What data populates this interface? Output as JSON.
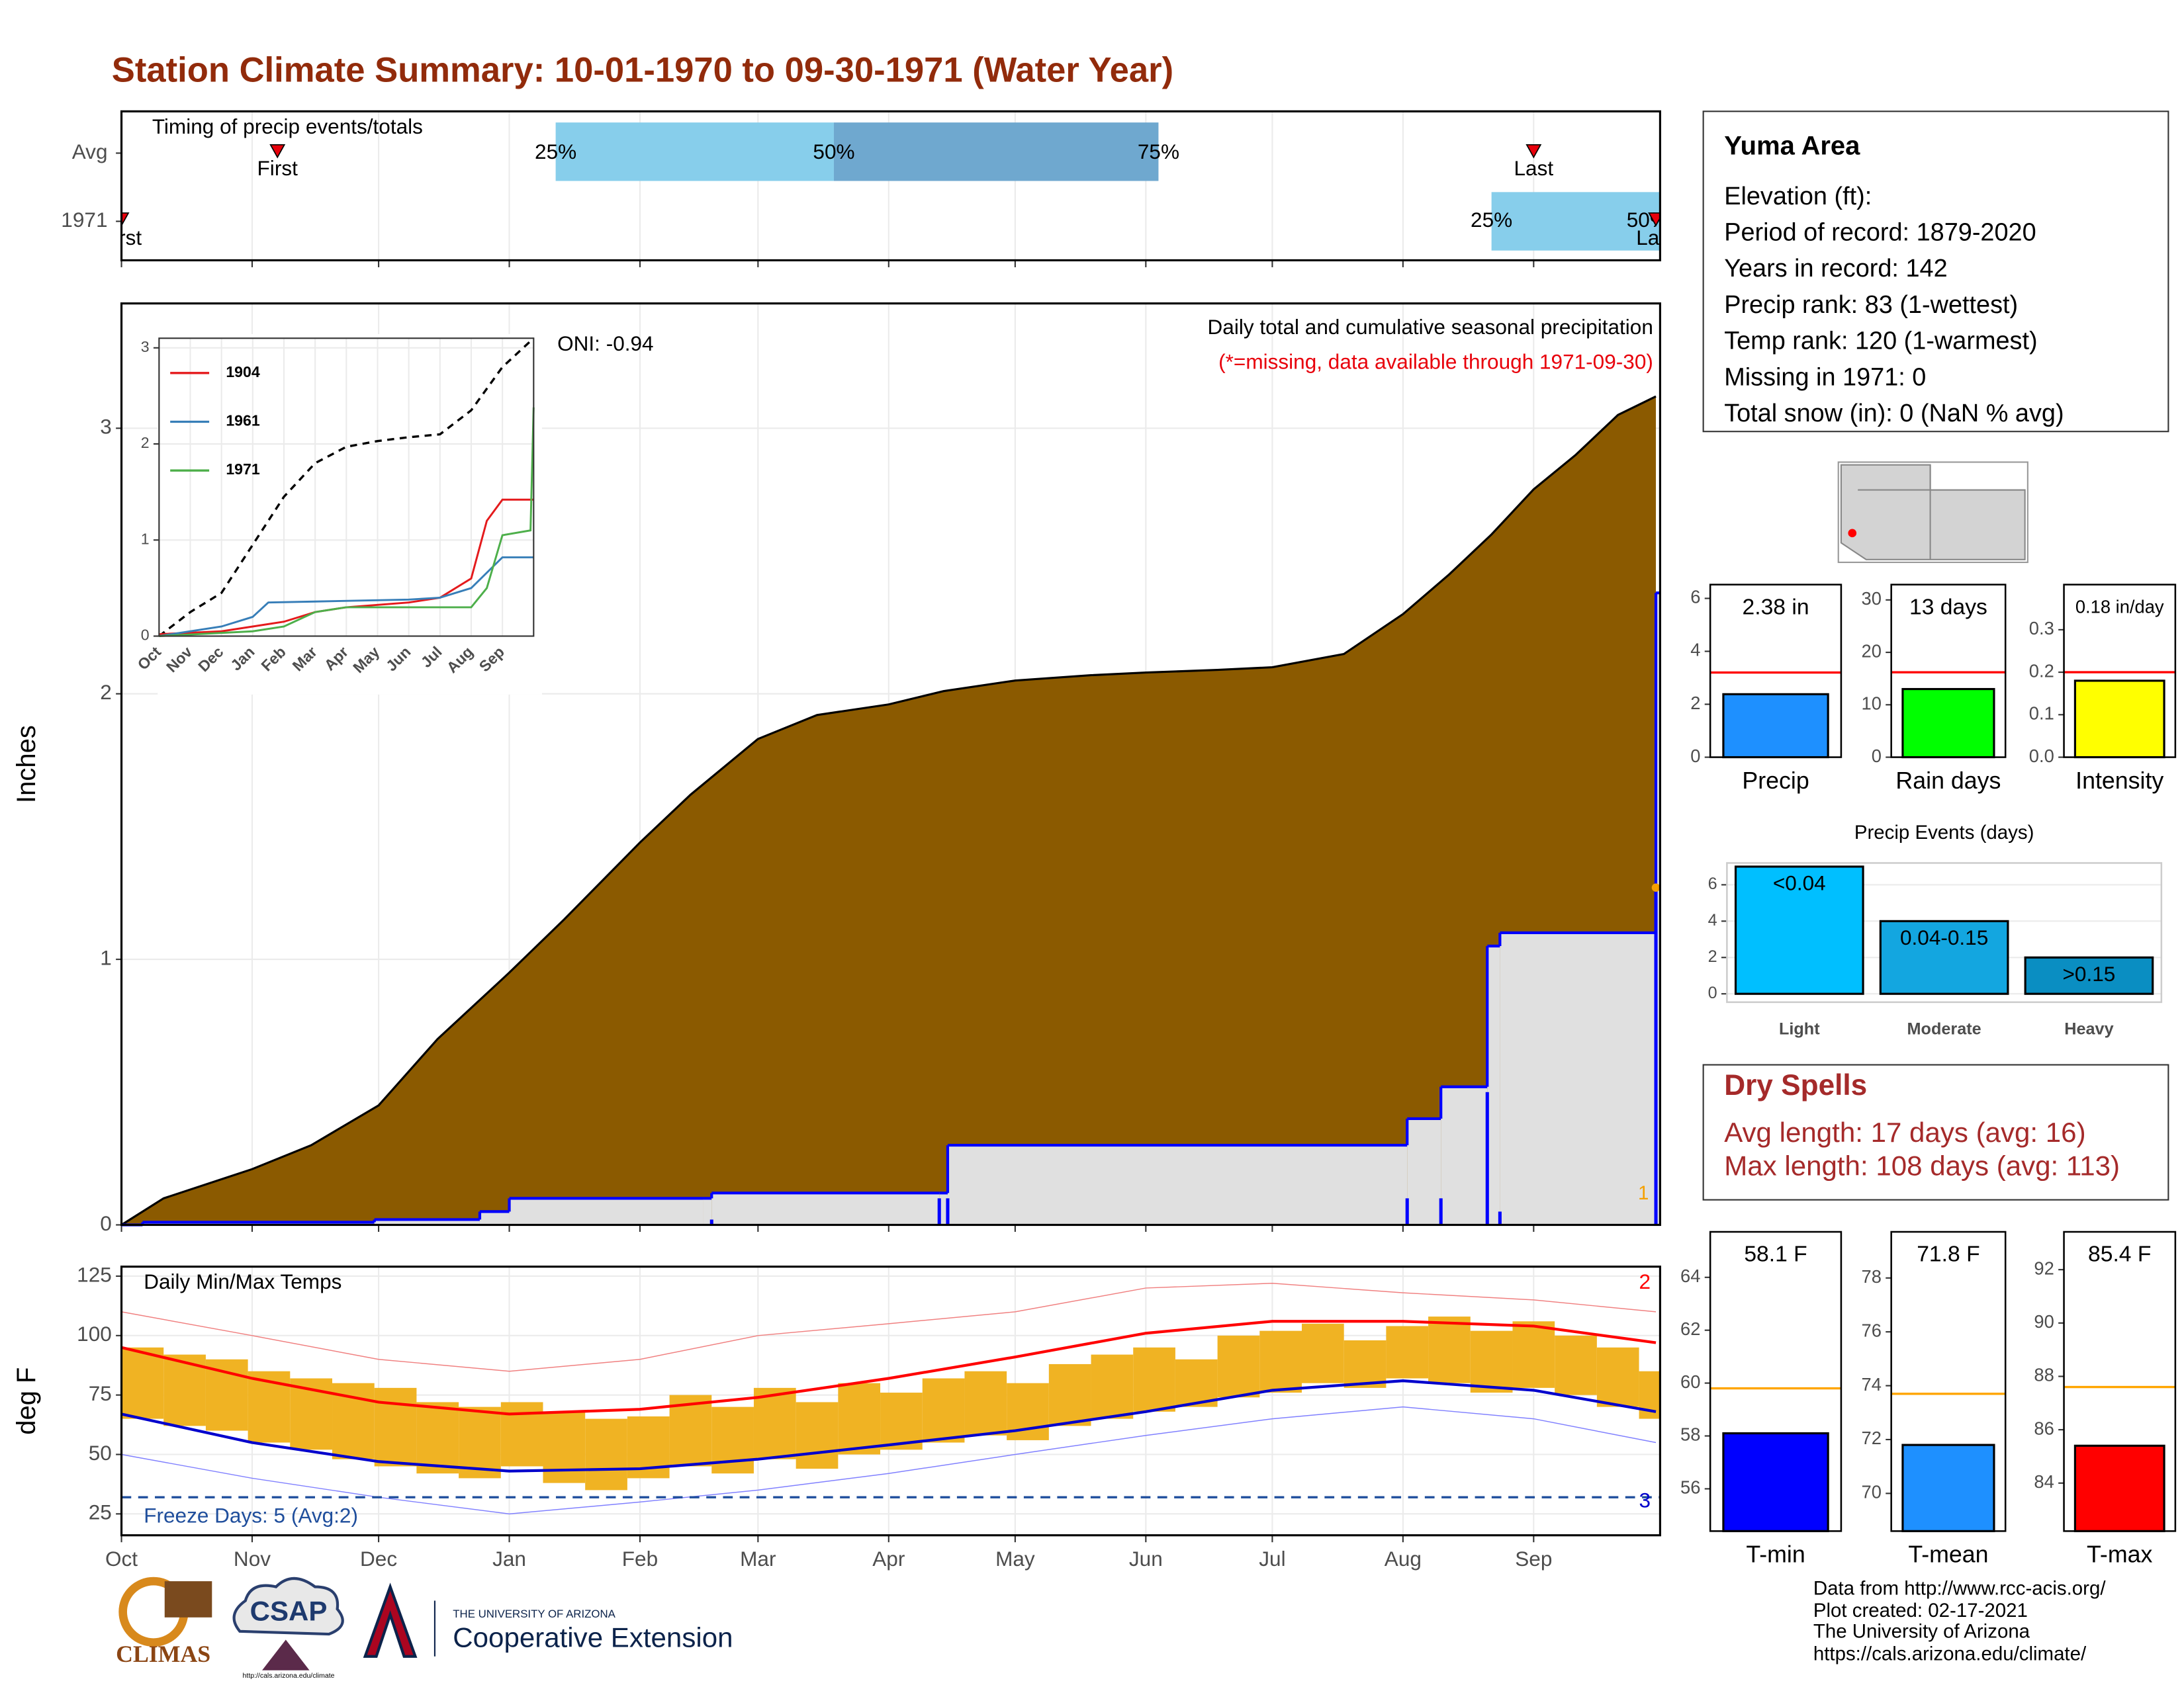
{
  "title": "Station Climate Summary: 10-01-1970 to 09-30-1971 (Water Year)",
  "info": {
    "title": "Yuma Area",
    "lines": [
      "Elevation (ft):",
      "Period of record: 1879-2020",
      "Years in record: 142",
      "Precip rank: 83 (1-wettest)",
      "Temp rank: 120 (1-warmest)",
      "Missing in 1971: 0",
      "Total snow (in): 0 (NaN % avg)"
    ]
  },
  "dry_spells": {
    "title": "Dry Spells",
    "lines": [
      "Avg length: 17 days (avg: 16)",
      "Max length: 108 days (avg: 113)"
    ]
  },
  "footer": [
    "Data from http://www.rcc-acis.org/",
    "Plot created: 02-17-2021",
    "The University of Arizona",
    "https://cals.arizona.edu/climate/"
  ],
  "logos": [
    "CLIMAS",
    "CSAP",
    "http://cals.arizona.edu/climate",
    "THE UNIVERSITY OF ARIZONA",
    "Cooperative Extension"
  ],
  "chart_data": [
    {
      "type": "timeline",
      "title": "Timing of precip events/totals",
      "rows": [
        "Avg",
        "1971"
      ],
      "xlim": [
        0,
        365
      ],
      "xticks": [
        0,
        31,
        61,
        92,
        123,
        151,
        182,
        212,
        243,
        273,
        304,
        335
      ],
      "avg": {
        "first": 37,
        "q25": 103,
        "q50": 169,
        "q75": 246,
        "last": 335
      },
      "year": {
        "first": 0,
        "q25": 325,
        "q50": 362,
        "last": 364
      },
      "labels": {
        "first": "First",
        "last": "Last",
        "q25": "25%",
        "q50": "50%",
        "q75": "75%"
      },
      "colors": {
        "q1": "#87ceeb",
        "q2": "#6fa8cf",
        "marker": "#e8000b"
      }
    },
    {
      "type": "area",
      "ylabel": "Inches",
      "annotation": "Daily total and cumulative seasonal precipitation",
      "note": "(*=missing, data available through 1971-09-30)",
      "note_color": "#e8000b",
      "oni": "ONI: -0.94",
      "count": "1",
      "count_color": "#f5a000",
      "xlim": [
        0,
        365
      ],
      "xticks": [
        0,
        31,
        61,
        92,
        123,
        151,
        182,
        212,
        243,
        273,
        304,
        335
      ],
      "ylim": [
        0,
        3.47
      ],
      "yticks": [
        0,
        1,
        2,
        3
      ],
      "grid": true,
      "series": [
        {
          "kind": "area",
          "color": "#8b5a00",
          "x": [
            0,
            10,
            31,
            45,
            61,
            75,
            92,
            105,
            123,
            135,
            151,
            165,
            182,
            195,
            212,
            230,
            243,
            260,
            273,
            290,
            304,
            315,
            325,
            335,
            345,
            355,
            364
          ],
          "values": [
            0,
            0.1,
            0.21,
            0.3,
            0.45,
            0.7,
            0.95,
            1.15,
            1.44,
            1.62,
            1.83,
            1.92,
            1.96,
            2.01,
            2.05,
            2.07,
            2.08,
            2.09,
            2.1,
            2.15,
            2.3,
            2.45,
            2.6,
            2.77,
            2.9,
            3.05,
            3.12
          ]
        },
        {
          "kind": "step",
          "color": "#e0e0e0",
          "stroke": "#0000ff",
          "x": [
            0,
            5,
            60,
            85,
            92,
            138,
            140,
            194,
            196,
            305,
            313,
            324,
            327,
            364
          ],
          "values": [
            0,
            0.01,
            0.02,
            0.05,
            0.1,
            0.1,
            0.12,
            0.12,
            0.3,
            0.4,
            0.52,
            1.05,
            1.1,
            2.38
          ]
        }
      ],
      "daily": {
        "color": "#0000ff",
        "x": [
          140,
          194,
          196,
          305,
          313,
          324,
          327,
          364
        ],
        "values": [
          0.02,
          0.1,
          0.1,
          0.1,
          0.1,
          0.5,
          0.05,
          1.27
        ]
      },
      "max_marker": {
        "x": 364,
        "value": 1.27,
        "color": "#f5a000"
      }
    },
    {
      "type": "line",
      "categories": [
        "Oct",
        "Nov",
        "Dec",
        "Jan",
        "Feb",
        "Mar",
        "Apr",
        "May",
        "Jun",
        "Jul",
        "Aug",
        "Sep"
      ],
      "xlim": [
        0,
        12
      ],
      "ylim": [
        0,
        3.1
      ],
      "yticks": [
        0,
        1,
        2,
        3
      ],
      "grid": true,
      "series": [
        {
          "color": "#000000",
          "dash": true,
          "x": [
            0,
            1,
            2,
            3,
            4,
            5,
            6,
            7,
            8,
            9,
            10,
            11,
            12
          ],
          "values": [
            0,
            0.25,
            0.45,
            0.95,
            1.45,
            1.8,
            1.97,
            2.03,
            2.07,
            2.1,
            2.35,
            2.8,
            3.1
          ]
        },
        {
          "name": "1904",
          "color": "#e41a1c",
          "x": [
            0,
            2,
            3,
            4,
            5,
            6,
            8,
            9,
            10,
            10.5,
            11,
            12
          ],
          "values": [
            0.02,
            0.05,
            0.1,
            0.15,
            0.25,
            0.3,
            0.35,
            0.4,
            0.6,
            1.2,
            1.42,
            1.42
          ]
        },
        {
          "name": "1961",
          "color": "#377eb8",
          "x": [
            0,
            2,
            3,
            3.5,
            5,
            8,
            9,
            10,
            11,
            12
          ],
          "values": [
            0,
            0.1,
            0.2,
            0.35,
            0.36,
            0.38,
            0.4,
            0.5,
            0.82,
            0.82
          ]
        },
        {
          "name": "1971",
          "color": "#4daf4a",
          "x": [
            0,
            3,
            4,
            5,
            6,
            10,
            10.5,
            11,
            11.9,
            12
          ],
          "values": [
            0,
            0.05,
            0.1,
            0.25,
            0.3,
            0.3,
            0.5,
            1.05,
            1.1,
            2.38
          ]
        }
      ]
    },
    {
      "type": "range_bar",
      "title": "Daily Min/Max Temps",
      "ylabel": "deg F",
      "categories": [
        "Oct",
        "Nov",
        "Dec",
        "Jan",
        "Feb",
        "Mar",
        "Apr",
        "May",
        "Jun",
        "Jul",
        "Aug",
        "Sep"
      ],
      "xlim": [
        0,
        365
      ],
      "xticks": [
        0,
        31,
        61,
        92,
        123,
        151,
        182,
        212,
        243,
        273,
        304,
        335
      ],
      "ylim": [
        16,
        129
      ],
      "yticks": [
        25,
        50,
        75,
        100,
        125
      ],
      "grid": true,
      "bar_color": "#f0b323",
      "x": [
        0,
        10,
        20,
        30,
        40,
        50,
        60,
        70,
        80,
        90,
        100,
        110,
        120,
        130,
        140,
        150,
        160,
        170,
        180,
        190,
        200,
        210,
        220,
        230,
        240,
        250,
        260,
        270,
        280,
        290,
        300,
        310,
        320,
        330,
        340,
        350,
        360
      ],
      "tmax": [
        95,
        92,
        90,
        85,
        82,
        80,
        78,
        72,
        70,
        72,
        68,
        65,
        66,
        75,
        70,
        78,
        72,
        80,
        76,
        82,
        85,
        80,
        88,
        92,
        95,
        90,
        100,
        102,
        105,
        98,
        104,
        108,
        102,
        106,
        100,
        95,
        85
      ],
      "tmin": [
        65,
        62,
        60,
        55,
        52,
        48,
        45,
        42,
        40,
        45,
        38,
        35,
        40,
        45,
        42,
        48,
        44,
        50,
        52,
        55,
        58,
        56,
        62,
        65,
        68,
        70,
        74,
        76,
        80,
        78,
        82,
        80,
        76,
        78,
        75,
        70,
        65
      ],
      "lines": [
        {
          "color": "#ff0000",
          "width": 2,
          "x": [
            0,
            31,
            61,
            92,
            123,
            151,
            182,
            212,
            243,
            273,
            304,
            335,
            364
          ],
          "values": [
            95,
            82,
            72,
            67,
            69,
            74,
            82,
            91,
            101,
            106,
            106,
            104,
            97
          ]
        },
        {
          "color": "#0000cc",
          "width": 2,
          "x": [
            0,
            31,
            61,
            92,
            123,
            151,
            182,
            212,
            243,
            273,
            304,
            335,
            364
          ],
          "values": [
            67,
            55,
            47,
            43,
            44,
            48,
            54,
            60,
            68,
            77,
            81,
            77,
            68
          ]
        },
        {
          "color": "#f08080",
          "width": 0.7,
          "x": [
            0,
            31,
            61,
            92,
            123,
            151,
            182,
            212,
            243,
            273,
            304,
            335,
            364
          ],
          "values": [
            110,
            100,
            90,
            85,
            90,
            100,
            105,
            110,
            120,
            122,
            118,
            115,
            110
          ]
        },
        {
          "color": "#8080ff",
          "width": 0.7,
          "x": [
            0,
            31,
            61,
            92,
            123,
            151,
            182,
            212,
            243,
            273,
            304,
            335,
            364
          ],
          "values": [
            50,
            40,
            32,
            25,
            30,
            35,
            42,
            50,
            58,
            65,
            70,
            65,
            55
          ]
        }
      ],
      "freeze": 32,
      "freeze_color": "#1f4e9c",
      "freeze_label": "Freeze Days: 5 (Avg:2)",
      "count_max": "2",
      "count_min": "3"
    },
    {
      "type": "bar",
      "categories": [
        "Precip"
      ],
      "values": [
        2.38
      ],
      "value_labels": [
        "2.38 in"
      ],
      "colors": [
        "#1e90ff"
      ],
      "reference": 3.2,
      "reference_color": "#ff0000",
      "ylim": [
        0,
        6.1
      ],
      "yticks": [
        0,
        2,
        4,
        6
      ]
    },
    {
      "type": "bar",
      "categories": [
        "Rain days"
      ],
      "values": [
        13
      ],
      "value_labels": [
        "13 days"
      ],
      "colors": [
        "#00ff00"
      ],
      "reference": 16.2,
      "reference_color": "#ff0000",
      "ylim": [
        0,
        30.8
      ],
      "yticks": [
        0,
        10,
        20,
        30
      ]
    },
    {
      "type": "bar",
      "categories": [
        "Intensity"
      ],
      "values": [
        0.18
      ],
      "value_labels": [
        "0.18 in/day"
      ],
      "colors": [
        "#ffff00"
      ],
      "reference": 0.2,
      "reference_color": "#ff0000",
      "ylim": [
        0,
        0.38
      ],
      "yticks": [
        {
          "value": 0,
          "label": "0.0"
        },
        0.1,
        0.2,
        0.3
      ]
    },
    {
      "type": "bar",
      "title": "Precip Events (days)",
      "categories": [
        "Light",
        "Moderate",
        "Heavy"
      ],
      "values": [
        7,
        4,
        2
      ],
      "bar_labels": [
        "<0.04",
        "0.04-0.15",
        ">0.15"
      ],
      "colors": [
        "#00bfff",
        "#13a6e0",
        "#0a8ec2"
      ],
      "ylim": [
        -0.46,
        7.2
      ],
      "yticks": [
        0,
        2,
        4,
        6
      ],
      "grid": true
    },
    {
      "type": "bar",
      "categories": [
        "T-min"
      ],
      "values": [
        58.1
      ],
      "value_labels": [
        "58.1 F"
      ],
      "colors": [
        "#0000ff"
      ],
      "reference": 59.8,
      "reference_color": "#ffa500",
      "ylim": [
        54.4,
        65.3
      ],
      "yticks": [
        56,
        58,
        60,
        62,
        64
      ]
    },
    {
      "type": "bar",
      "categories": [
        "T-mean"
      ],
      "values": [
        71.8
      ],
      "value_labels": [
        "71.8 F"
      ],
      "colors": [
        "#1e90ff"
      ],
      "reference": 73.7,
      "reference_color": "#ffa500",
      "ylim": [
        68.6,
        79.3
      ],
      "yticks": [
        70,
        72,
        74,
        76,
        78
      ]
    },
    {
      "type": "bar",
      "categories": [
        "T-max"
      ],
      "values": [
        85.4
      ],
      "value_labels": [
        "85.4 F"
      ],
      "colors": [
        "#ff0000"
      ],
      "reference": 87.6,
      "reference_color": "#ffa500",
      "ylim": [
        82.2,
        93.0
      ],
      "yticks": [
        84,
        86,
        88,
        90,
        92
      ]
    }
  ]
}
